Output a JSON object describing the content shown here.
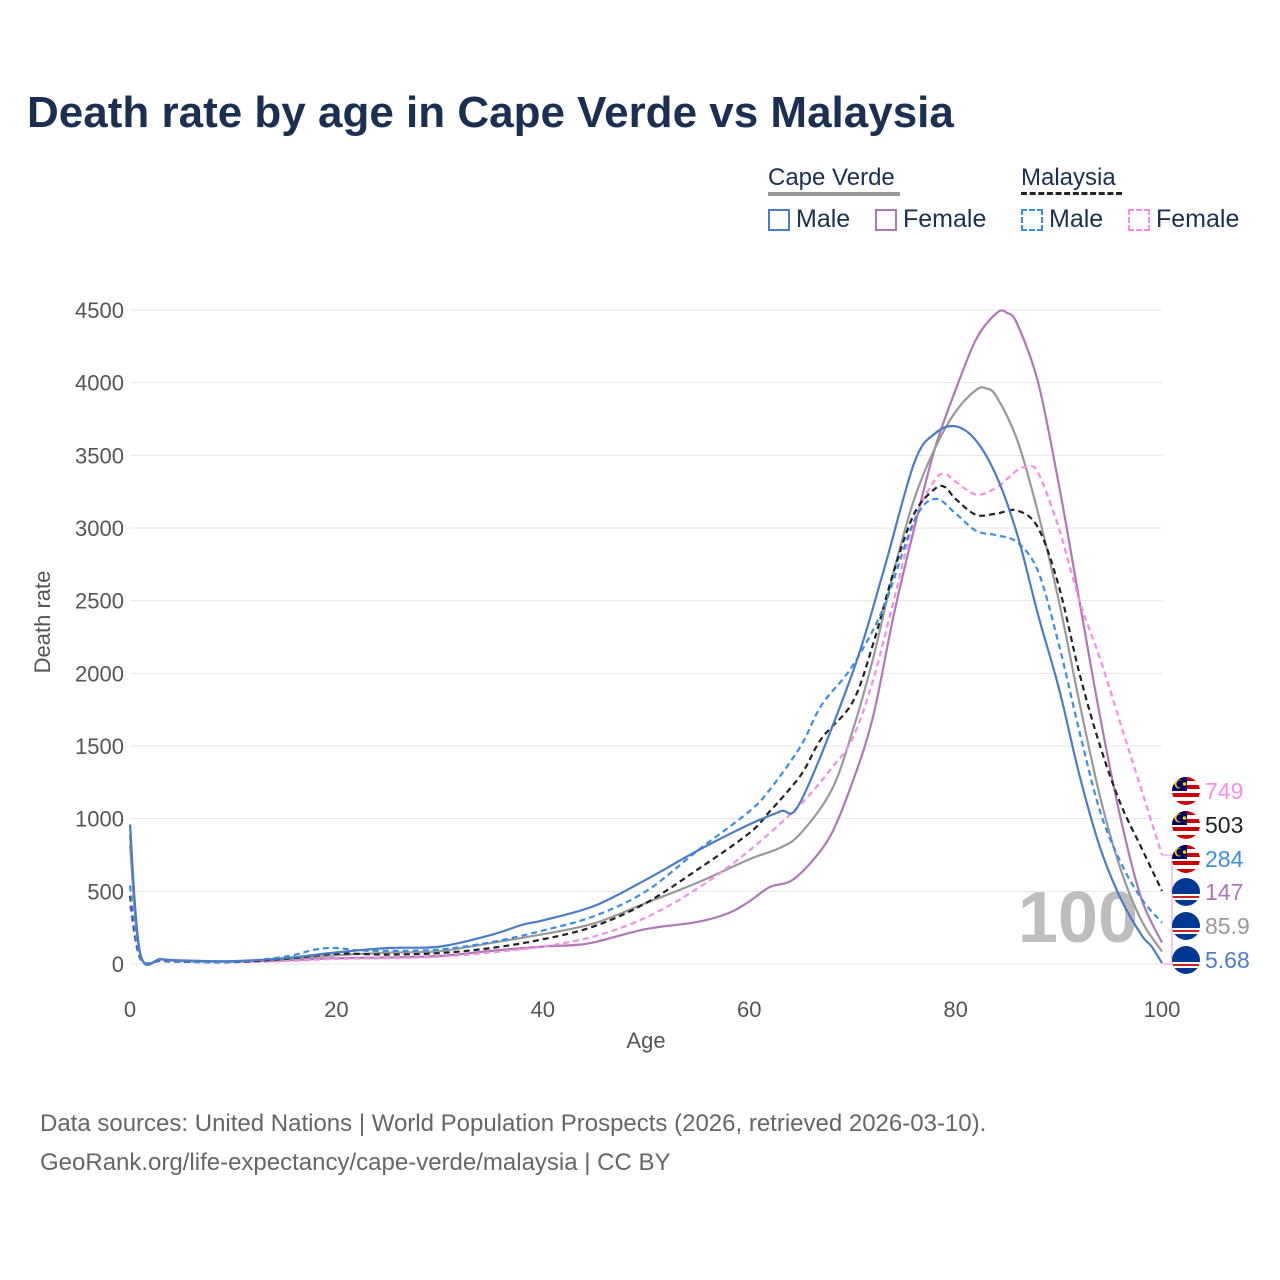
{
  "title": "Death rate by age in Cape Verde vs Malaysia",
  "legend": {
    "country1": "Cape Verde",
    "country2": "Malaysia",
    "male": "Male",
    "female": "Female"
  },
  "colors": {
    "cv_male": "#4a7cc7",
    "cv_female": "#b076b8",
    "cv_both": "#999999",
    "my_male": "#3a8ee6",
    "my_female": "#f58ee6",
    "my_both": "#222222",
    "title": "#1a2f52",
    "grid": "#e6e6e6"
  },
  "year_watermark": "100",
  "source_line1": "Data sources: United Nations | World Population Prospects (2026, retrieved 2026-03-10).",
  "source_line2": "GeoRank.org/life-expectancy/cape-verde/malaysia | CC BY",
  "chart_data": {
    "type": "line",
    "title": "Death rate by age in Cape Verde vs Malaysia",
    "xlabel": "Age",
    "ylabel": "Death rate",
    "xlim": [
      0,
      100
    ],
    "ylim": [
      0,
      4500
    ],
    "xticks": [
      0,
      20,
      40,
      60,
      80,
      100
    ],
    "yticks": [
      0,
      500,
      1000,
      1500,
      2000,
      2500,
      3000,
      3500,
      4000,
      4500
    ],
    "series": [
      {
        "name": "Cape Verde Male",
        "key": "cv_male",
        "dashed": false,
        "end_label": "5.68",
        "flag": "cape-verde-flag-icon",
        "points": [
          [
            0,
            960
          ],
          [
            1,
            70
          ],
          [
            3,
            35
          ],
          [
            5,
            25
          ],
          [
            10,
            20
          ],
          [
            15,
            40
          ],
          [
            20,
            80
          ],
          [
            25,
            110
          ],
          [
            30,
            120
          ],
          [
            35,
            200
          ],
          [
            38,
            270
          ],
          [
            40,
            300
          ],
          [
            45,
            400
          ],
          [
            50,
            580
          ],
          [
            55,
            780
          ],
          [
            60,
            960
          ],
          [
            63,
            1050
          ],
          [
            65,
            1120
          ],
          [
            70,
            2000
          ],
          [
            73,
            2700
          ],
          [
            76,
            3450
          ],
          [
            78,
            3650
          ],
          [
            80,
            3700
          ],
          [
            82,
            3600
          ],
          [
            84,
            3350
          ],
          [
            86,
            2950
          ],
          [
            88,
            2400
          ],
          [
            90,
            1900
          ],
          [
            92,
            1300
          ],
          [
            94,
            800
          ],
          [
            96,
            450
          ],
          [
            98,
            200
          ],
          [
            99,
            120
          ],
          [
            100,
            6
          ]
        ]
      },
      {
        "name": "Cape Verde Female",
        "key": "cv_female",
        "dashed": false,
        "end_label": "147",
        "flag": "cape-verde-flag-icon",
        "points": [
          [
            0,
            820
          ],
          [
            1,
            65
          ],
          [
            3,
            30
          ],
          [
            5,
            20
          ],
          [
            10,
            15
          ],
          [
            15,
            25
          ],
          [
            20,
            40
          ],
          [
            25,
            45
          ],
          [
            30,
            55
          ],
          [
            35,
            90
          ],
          [
            40,
            120
          ],
          [
            43,
            130
          ],
          [
            45,
            150
          ],
          [
            50,
            240
          ],
          [
            55,
            290
          ],
          [
            58,
            350
          ],
          [
            60,
            430
          ],
          [
            62,
            530
          ],
          [
            64,
            570
          ],
          [
            66,
            700
          ],
          [
            68,
            900
          ],
          [
            70,
            1250
          ],
          [
            72,
            1700
          ],
          [
            74,
            2400
          ],
          [
            76,
            3000
          ],
          [
            78,
            3550
          ],
          [
            80,
            3950
          ],
          [
            82,
            4300
          ],
          [
            84,
            4480
          ],
          [
            85,
            4480
          ],
          [
            86,
            4400
          ],
          [
            88,
            4000
          ],
          [
            90,
            3300
          ],
          [
            92,
            2500
          ],
          [
            94,
            1700
          ],
          [
            96,
            1000
          ],
          [
            98,
            450
          ],
          [
            100,
            147
          ]
        ]
      },
      {
        "name": "Cape Verde Both",
        "key": "cv_both",
        "dashed": false,
        "end_label": "85.9",
        "flag": "cape-verde-flag-icon",
        "points": [
          [
            0,
            890
          ],
          [
            1,
            68
          ],
          [
            3,
            32
          ],
          [
            5,
            22
          ],
          [
            10,
            18
          ],
          [
            15,
            32
          ],
          [
            20,
            60
          ],
          [
            25,
            78
          ],
          [
            30,
            88
          ],
          [
            35,
            145
          ],
          [
            40,
            205
          ],
          [
            45,
            280
          ],
          [
            50,
            420
          ],
          [
            55,
            560
          ],
          [
            60,
            720
          ],
          [
            63,
            800
          ],
          [
            65,
            900
          ],
          [
            68,
            1200
          ],
          [
            70,
            1600
          ],
          [
            72,
            2100
          ],
          [
            74,
            2700
          ],
          [
            76,
            3200
          ],
          [
            78,
            3550
          ],
          [
            80,
            3800
          ],
          [
            82,
            3950
          ],
          [
            83,
            3960
          ],
          [
            84,
            3900
          ],
          [
            86,
            3600
          ],
          [
            88,
            3100
          ],
          [
            90,
            2500
          ],
          [
            92,
            1800
          ],
          [
            94,
            1150
          ],
          [
            96,
            650
          ],
          [
            98,
            300
          ],
          [
            100,
            86
          ]
        ]
      },
      {
        "name": "Malaysia Male",
        "key": "my_male",
        "dashed": true,
        "end_label": "284",
        "flag": "malaysia-flag-icon",
        "points": [
          [
            0,
            540
          ],
          [
            1,
            45
          ],
          [
            3,
            25
          ],
          [
            5,
            18
          ],
          [
            10,
            15
          ],
          [
            15,
            50
          ],
          [
            18,
            100
          ],
          [
            20,
            110
          ],
          [
            22,
            95
          ],
          [
            25,
            90
          ],
          [
            30,
            100
          ],
          [
            35,
            150
          ],
          [
            40,
            230
          ],
          [
            45,
            330
          ],
          [
            50,
            500
          ],
          [
            55,
            780
          ],
          [
            60,
            1050
          ],
          [
            62,
            1200
          ],
          [
            65,
            1500
          ],
          [
            67,
            1780
          ],
          [
            70,
            2050
          ],
          [
            73,
            2450
          ],
          [
            76,
            3050
          ],
          [
            78,
            3200
          ],
          [
            80,
            3100
          ],
          [
            82,
            2980
          ],
          [
            84,
            2950
          ],
          [
            86,
            2900
          ],
          [
            88,
            2700
          ],
          [
            90,
            2200
          ],
          [
            92,
            1600
          ],
          [
            94,
            1050
          ],
          [
            96,
            700
          ],
          [
            98,
            450
          ],
          [
            100,
            284
          ]
        ]
      },
      {
        "name": "Malaysia Female",
        "key": "my_female",
        "dashed": true,
        "end_label": "749",
        "flag": "malaysia-flag-icon",
        "points": [
          [
            0,
            400
          ],
          [
            1,
            35
          ],
          [
            3,
            20
          ],
          [
            5,
            15
          ],
          [
            10,
            12
          ],
          [
            15,
            20
          ],
          [
            20,
            35
          ],
          [
            25,
            40
          ],
          [
            30,
            50
          ],
          [
            35,
            80
          ],
          [
            40,
            120
          ],
          [
            45,
            190
          ],
          [
            50,
            320
          ],
          [
            55,
            520
          ],
          [
            60,
            780
          ],
          [
            65,
            1100
          ],
          [
            68,
            1350
          ],
          [
            70,
            1550
          ],
          [
            72,
            1950
          ],
          [
            74,
            2500
          ],
          [
            76,
            3050
          ],
          [
            78,
            3330
          ],
          [
            79,
            3370
          ],
          [
            80,
            3320
          ],
          [
            82,
            3230
          ],
          [
            84,
            3280
          ],
          [
            86,
            3400
          ],
          [
            87,
            3420
          ],
          [
            88,
            3380
          ],
          [
            90,
            3000
          ],
          [
            92,
            2500
          ],
          [
            94,
            2100
          ],
          [
            96,
            1650
          ],
          [
            98,
            1200
          ],
          [
            100,
            749
          ]
        ]
      },
      {
        "name": "Malaysia Both",
        "key": "my_both",
        "dashed": true,
        "end_label": "503",
        "flag": "malaysia-flag-icon",
        "points": [
          [
            0,
            470
          ],
          [
            1,
            40
          ],
          [
            3,
            22
          ],
          [
            5,
            16
          ],
          [
            10,
            14
          ],
          [
            15,
            35
          ],
          [
            20,
            70
          ],
          [
            25,
            65
          ],
          [
            30,
            75
          ],
          [
            35,
            110
          ],
          [
            40,
            170
          ],
          [
            45,
            260
          ],
          [
            50,
            420
          ],
          [
            55,
            650
          ],
          [
            60,
            900
          ],
          [
            62,
            1050
          ],
          [
            65,
            1300
          ],
          [
            67,
            1550
          ],
          [
            70,
            1800
          ],
          [
            72,
            2200
          ],
          [
            74,
            2700
          ],
          [
            76,
            3100
          ],
          [
            78,
            3270
          ],
          [
            79,
            3280
          ],
          [
            80,
            3200
          ],
          [
            82,
            3090
          ],
          [
            84,
            3100
          ],
          [
            86,
            3120
          ],
          [
            88,
            3000
          ],
          [
            90,
            2600
          ],
          [
            92,
            2000
          ],
          [
            94,
            1500
          ],
          [
            96,
            1100
          ],
          [
            98,
            800
          ],
          [
            100,
            503
          ]
        ]
      }
    ]
  }
}
